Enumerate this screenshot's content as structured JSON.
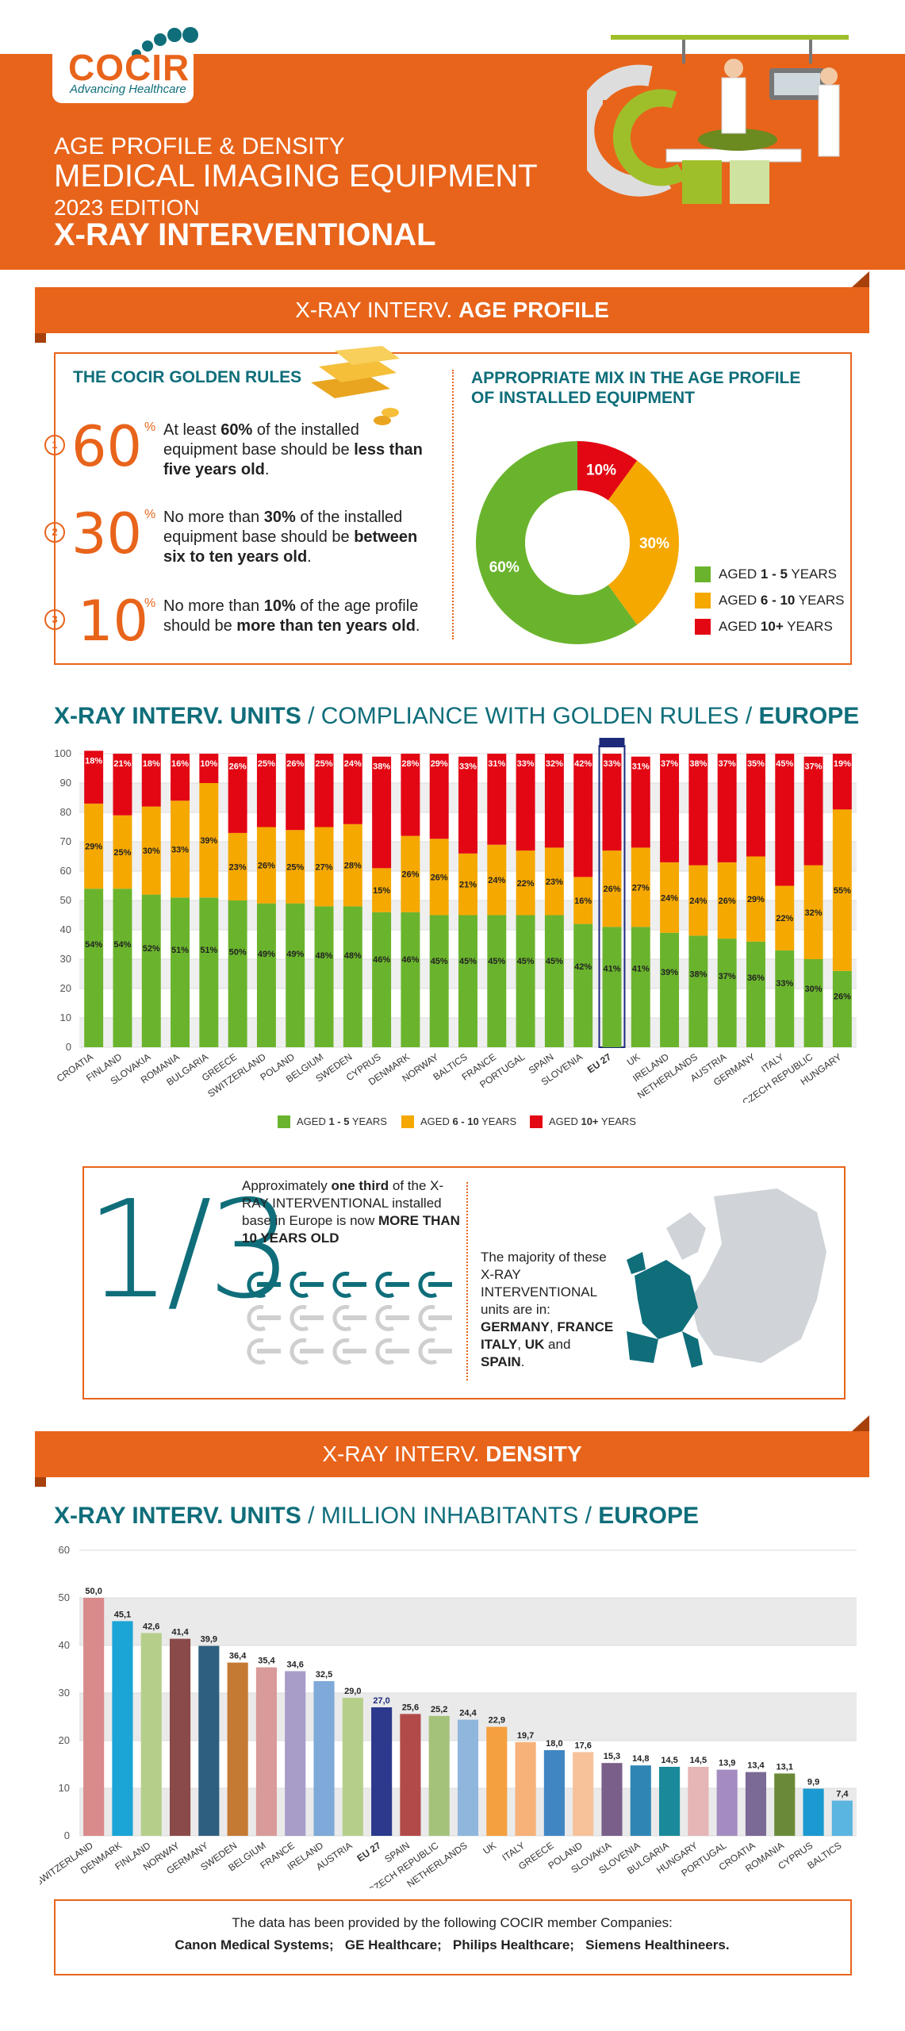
{
  "header": {
    "logo": "COCIR",
    "logo_tagline": "Advancing Healthcare",
    "line1": "AGE PROFILE & DENSITY",
    "line2": "MEDICAL IMAGING EQUIPMENT",
    "line3": "2023 EDITION",
    "line4": "X-RAY INTERVENTIONAL"
  },
  "age_profile": {
    "ribbon_prefix": "X-RAY INTERV.",
    "ribbon_bold": "AGE PROFILE",
    "golden_rules_title": "THE COCIR GOLDEN RULES",
    "rules": [
      {
        "index": "1",
        "number": "60",
        "pct": "%",
        "t1": "At least ",
        "b1": "60%",
        "t2": " of the installed equipment base should be ",
        "b2": "less than five years old",
        "t3": "."
      },
      {
        "index": "2",
        "number": "30",
        "pct": "%",
        "t1": "No more than ",
        "b1": "30%",
        "t2": " of the installed equipment base should be ",
        "b2": "between six to ten years old",
        "t3": "."
      },
      {
        "index": "3",
        "number": "10",
        "pct": "%",
        "t1": "No more than ",
        "b1": "10%",
        "t2": " of the age profile should be ",
        "b2": "more than ten years old",
        "t3": "."
      }
    ],
    "mix_title_1": "APPROPRIATE MIX IN THE AGE PROFILE",
    "mix_title_2": "OF INSTALLED EQUIPMENT",
    "donut": [
      {
        "label": "60%",
        "value": 60,
        "color": "#6ab42d"
      },
      {
        "label": "30%",
        "value": 30,
        "color": "#f5a800"
      },
      {
        "label": "10%",
        "value": 10,
        "color": "#e30613"
      }
    ],
    "legend": [
      {
        "pre": "AGED ",
        "bold": "1 - 5",
        "post": " YEARS",
        "color": "#6ab42d"
      },
      {
        "pre": "AGED ",
        "bold": "6 - 10",
        "post": " YEARS",
        "color": "#f5a800"
      },
      {
        "pre": "AGED ",
        "bold": "10+",
        "post": " YEARS",
        "color": "#e30613"
      }
    ]
  },
  "compliance": {
    "title_bold1": "X-RAY INTERV. UNITS",
    "title_mid": " / COMPLIANCE WITH GOLDEN RULES / ",
    "title_bold2": "EUROPE",
    "legend": [
      {
        "pre": "AGED ",
        "bold": "1 - 5",
        "post": " YEARS",
        "color": "#6ab42d"
      },
      {
        "pre": "AGED ",
        "bold": "6 - 10",
        "post": " YEARS",
        "color": "#f5a800"
      },
      {
        "pre": "AGED ",
        "bold": "10+",
        "post": " YEARS",
        "color": "#e30613"
      }
    ]
  },
  "one_third": {
    "big": "1/3",
    "t1": "Approximately ",
    "b1": "one third",
    "t2": " of the X-RAY INTERVENTIONAL installed base in Europe is now ",
    "b2": "MORE THAN 10 YEARS OLD",
    "majority_1": "The majority of these X-RAY INTERVENTIONAL units are in:",
    "majority_b1": "GERMANY",
    "majority_sep1": ", ",
    "majority_b2": "FRANCE ITALY",
    "majority_sep2": ", ",
    "majority_b3": "UK",
    "majority_and": " and ",
    "majority_b4": "SPAIN",
    "majority_end": "."
  },
  "density": {
    "ribbon_prefix": "X-RAY INTERV.",
    "ribbon_bold": "DENSITY",
    "title_bold1": "X-RAY INTERV. UNITS",
    "title_mid": " / MILLION INHABITANTS / ",
    "title_bold2": "EUROPE"
  },
  "footer": {
    "line1": "The data has been provided by the following COCIR member Companies:",
    "companies": "Canon Medical Systems;   GE Healthcare;   Philips Healthcare;   Siemens Healthineers."
  },
  "chart_data": [
    {
      "type": "bar",
      "stacked": true,
      "ylim": [
        0,
        100
      ],
      "yticks": [
        0,
        10,
        20,
        30,
        40,
        50,
        60,
        70,
        80,
        90,
        100
      ],
      "grid": true,
      "categories": [
        "CROATIA",
        "FINLAND",
        "SLOVAKIA",
        "ROMANIA",
        "BULGARIA",
        "GREECE",
        "SWITZERLAND",
        "POLAND",
        "BELGIUM",
        "SWEDEN",
        "CYPRUS",
        "DENMARK",
        "NORWAY",
        "BALTICS",
        "FRANCE",
        "PORTUGAL",
        "SPAIN",
        "SLOVENIA",
        "EU 27",
        "UK",
        "IRELAND",
        "NETHERLANDS",
        "AUSTRIA",
        "GERMANY",
        "ITALY",
        "CZECH REPUBLIC",
        "HUNGARY"
      ],
      "highlight": "EU 27",
      "series": [
        {
          "name": "AGED 1 - 5 YEARS",
          "color": "#6ab42d",
          "values": [
            54,
            54,
            52,
            51,
            51,
            50,
            49,
            49,
            48,
            48,
            46,
            46,
            45,
            45,
            45,
            45,
            45,
            42,
            41,
            41,
            39,
            38,
            37,
            36,
            33,
            30,
            26
          ]
        },
        {
          "name": "AGED 6 - 10 YEARS",
          "color": "#f5a800",
          "values": [
            29,
            25,
            30,
            33,
            39,
            23,
            26,
            25,
            27,
            28,
            15,
            26,
            26,
            21,
            24,
            22,
            23,
            16,
            26,
            27,
            24,
            24,
            26,
            29,
            22,
            32,
            55
          ]
        },
        {
          "name": "AGED 10+ YEARS",
          "color": "#e30613",
          "values": [
            18,
            21,
            18,
            16,
            10,
            26,
            25,
            26,
            25,
            24,
            38,
            28,
            29,
            33,
            31,
            33,
            32,
            42,
            33,
            31,
            37,
            38,
            37,
            35,
            45,
            37,
            19
          ]
        }
      ],
      "value_labels_suffix": "%"
    },
    {
      "type": "bar",
      "ylim": [
        0,
        60
      ],
      "yticks": [
        0,
        10,
        20,
        30,
        40,
        50,
        60
      ],
      "grid": true,
      "categories": [
        "SWITZERLAND",
        "DENMARK",
        "FINLAND",
        "NORWAY",
        "GERMANY",
        "SWEDEN",
        "BELGIUM",
        "FRANCE",
        "IRELAND",
        "AUSTRIA",
        "EU 27",
        "SPAIN",
        "CZECH REPUBLIC",
        "NETHERLANDS",
        "UK",
        "ITALY",
        "GREECE",
        "POLAND",
        "SLOVAKIA",
        "SLOVENIA",
        "BULGARIA",
        "HUNGARY",
        "PORTUGAL",
        "CROATIA",
        "ROMANIA",
        "CYPRUS",
        "BALTICS"
      ],
      "values": [
        50.0,
        45.1,
        42.6,
        41.4,
        39.9,
        36.4,
        35.4,
        34.6,
        32.5,
        29.0,
        27.0,
        25.6,
        25.2,
        24.4,
        22.9,
        19.7,
        18.0,
        17.6,
        15.3,
        14.8,
        14.5,
        14.5,
        13.9,
        13.4,
        13.1,
        9.9,
        7.4
      ],
      "value_labels": [
        "50,0",
        "45,1",
        "42,6",
        "41,4",
        "39,9",
        "36,4",
        "35,4",
        "34,6",
        "32,5",
        "29,0",
        "27,0",
        "25,6",
        "25,2",
        "24,4",
        "22,9",
        "19,7",
        "18,0",
        "17,6",
        "15,3",
        "14,8",
        "14,5",
        "14,5",
        "13,9",
        "13,4",
        "13,1",
        "9,9",
        "7,4"
      ],
      "colors": [
        "#d98a8a",
        "#1aa5d6",
        "#b5cf8a",
        "#8b4a4a",
        "#2f5f80",
        "#c57a33",
        "#d99a9a",
        "#a89cc8",
        "#7ea9d8",
        "#b5cf8a",
        "#2b3a8c",
        "#b24a4a",
        "#a5c27a",
        "#8fb7dd",
        "#f5a040",
        "#f7b27a",
        "#3f86c2",
        "#f7c29a",
        "#7a5f8a",
        "#2f86b5",
        "#1a8a9a",
        "#e6b5b5",
        "#a58cc0",
        "#7a6a95",
        "#6a8a3a",
        "#1a9ad0",
        "#5ab5e0"
      ],
      "highlight": "EU 27"
    }
  ]
}
